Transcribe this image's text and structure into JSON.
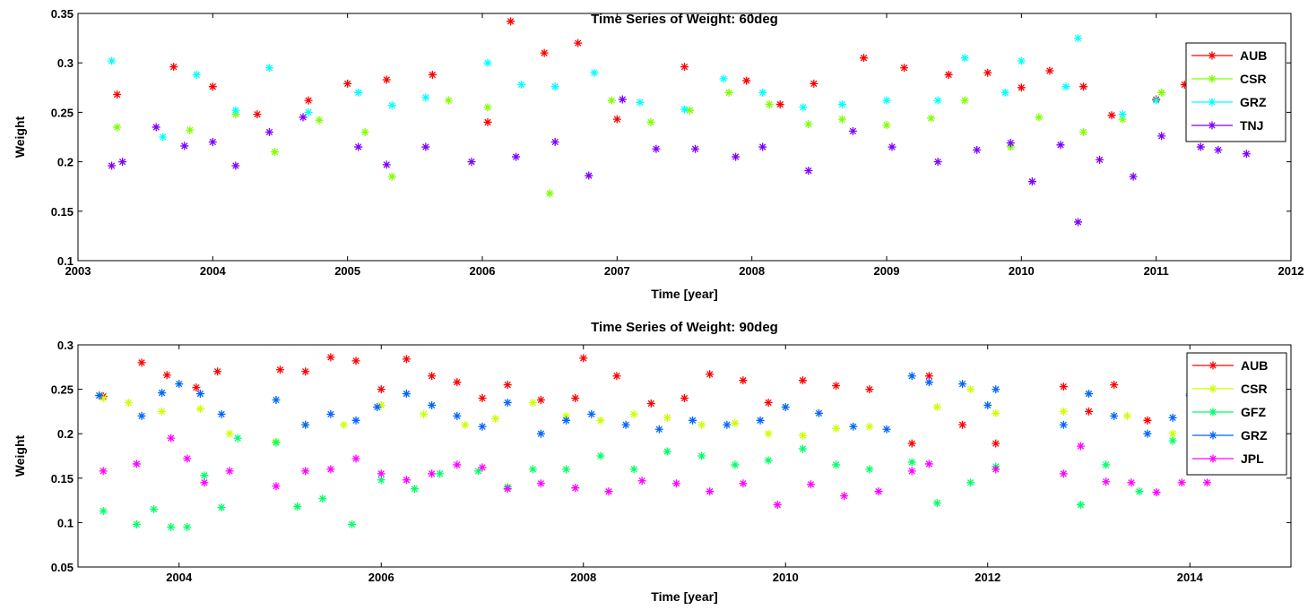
{
  "chart_data": [
    {
      "type": "scatter",
      "title": "Time Series of Weight: 60deg",
      "xlabel": "Time [year]",
      "ylabel": "Weight",
      "xlim": [
        2003,
        2012
      ],
      "ylim": [
        0.1,
        0.35
      ],
      "xticks": [
        2003,
        2004,
        2005,
        2006,
        2007,
        2008,
        2009,
        2010,
        2011,
        2012
      ],
      "xtick_labels": [
        "2003",
        "2004",
        "2005",
        "2006",
        "2007",
        "2008",
        "2009",
        "2010",
        "2011",
        "2012"
      ],
      "yticks": [
        0.1,
        0.15,
        0.2,
        0.25,
        0.3,
        0.35
      ],
      "ytick_labels": [
        "0.1",
        "0.15",
        "0.2",
        "0.25",
        "0.3",
        "0.35"
      ],
      "legend_position": "top-right",
      "series": [
        {
          "name": "AUB",
          "color": "#ff0000",
          "x": [
            2003.29,
            2003.71,
            2004.0,
            2004.33,
            2004.71,
            2005.0,
            2005.29,
            2005.63,
            2006.04,
            2006.21,
            2006.46,
            2006.71,
            2007.0,
            2007.5,
            2007.96,
            2008.21,
            2008.46,
            2008.83,
            2009.13,
            2009.46,
            2009.75,
            2010.0,
            2010.21,
            2010.46,
            2010.67,
            2011.0,
            2011.21
          ],
          "y": [
            0.268,
            0.296,
            0.276,
            0.248,
            0.262,
            0.279,
            0.283,
            0.288,
            0.24,
            0.342,
            0.31,
            0.32,
            0.243,
            0.296,
            0.282,
            0.258,
            0.279,
            0.305,
            0.295,
            0.288,
            0.29,
            0.275,
            0.292,
            0.276,
            0.247,
            0.263,
            0.278
          ]
        },
        {
          "name": "CSR",
          "color": "#80ff00",
          "x": [
            2003.29,
            2003.83,
            2004.17,
            2004.46,
            2004.79,
            2005.13,
            2005.33,
            2005.75,
            2006.04,
            2006.5,
            2006.96,
            2007.25,
            2007.54,
            2007.83,
            2008.13,
            2008.42,
            2008.67,
            2009.0,
            2009.33,
            2009.58,
            2009.92,
            2010.13,
            2010.46,
            2010.75,
            2011.04
          ],
          "y": [
            0.235,
            0.232,
            0.248,
            0.21,
            0.242,
            0.23,
            0.185,
            0.262,
            0.255,
            0.168,
            0.262,
            0.24,
            0.252,
            0.27,
            0.258,
            0.238,
            0.243,
            0.237,
            0.244,
            0.262,
            0.215,
            0.245,
            0.23,
            0.243,
            0.27
          ]
        },
        {
          "name": "GRZ",
          "color": "#00ffff",
          "x": [
            2003.25,
            2003.63,
            2003.88,
            2004.17,
            2004.42,
            2004.71,
            2005.08,
            2005.33,
            2005.58,
            2006.04,
            2006.29,
            2006.54,
            2006.83,
            2007.17,
            2007.5,
            2007.79,
            2008.08,
            2008.38,
            2008.67,
            2009.0,
            2009.38,
            2009.58,
            2009.88,
            2010.0,
            2010.33,
            2010.42,
            2010.75,
            2011.0
          ],
          "y": [
            0.302,
            0.225,
            0.288,
            0.252,
            0.295,
            0.25,
            0.27,
            0.257,
            0.265,
            0.3,
            0.278,
            0.276,
            0.29,
            0.26,
            0.253,
            0.284,
            0.27,
            0.255,
            0.258,
            0.262,
            0.262,
            0.305,
            0.27,
            0.302,
            0.276,
            0.325,
            0.248,
            0.262
          ]
        },
        {
          "name": "TNJ",
          "color": "#8000ff",
          "x": [
            2003.25,
            2003.33,
            2003.58,
            2003.79,
            2004.0,
            2004.17,
            2004.42,
            2004.67,
            2005.08,
            2005.29,
            2005.58,
            2005.92,
            2006.25,
            2006.54,
            2006.79,
            2007.04,
            2007.29,
            2007.58,
            2007.88,
            2008.08,
            2008.42,
            2008.75,
            2009.04,
            2009.38,
            2009.67,
            2009.92,
            2010.08,
            2010.29,
            2010.42,
            2010.58,
            2010.83,
            2011.04,
            2011.33,
            2011.46,
            2011.67
          ],
          "y": [
            0.196,
            0.2,
            0.235,
            0.216,
            0.22,
            0.196,
            0.23,
            0.245,
            0.215,
            0.197,
            0.215,
            0.2,
            0.205,
            0.22,
            0.186,
            0.263,
            0.213,
            0.213,
            0.205,
            0.215,
            0.191,
            0.231,
            0.215,
            0.2,
            0.212,
            0.219,
            0.18,
            0.217,
            0.139,
            0.202,
            0.185,
            0.226,
            0.215,
            0.212,
            0.208
          ]
        }
      ]
    },
    {
      "type": "scatter",
      "title": "Time Series of Weight: 90deg",
      "xlabel": "Time [year]",
      "ylabel": "Weight",
      "xlim": [
        2003,
        2015
      ],
      "ylim": [
        0.05,
        0.3
      ],
      "xticks": [
        2004,
        2006,
        2008,
        2010,
        2012,
        2014
      ],
      "xtick_labels": [
        "2004",
        "2006",
        "2008",
        "2010",
        "2012",
        "2014"
      ],
      "yticks": [
        0.05,
        0.1,
        0.15,
        0.2,
        0.25,
        0.3
      ],
      "ytick_labels": [
        "0.05",
        "0.1",
        "0.15",
        "0.2",
        "0.25",
        "0.3"
      ],
      "legend_position": "top-right",
      "series": [
        {
          "name": "AUB",
          "color": "#ff0000",
          "x": [
            2003.25,
            2003.63,
            2003.88,
            2004.17,
            2004.38,
            2005.0,
            2005.25,
            2005.5,
            2005.75,
            2006.0,
            2006.25,
            2006.5,
            2006.75,
            2007.0,
            2007.25,
            2007.58,
            2007.92,
            2008.0,
            2008.33,
            2008.67,
            2009.0,
            2009.25,
            2009.58,
            2009.83,
            2010.17,
            2010.5,
            2010.83,
            2011.25,
            2011.42,
            2011.75,
            2012.08,
            2012.75,
            2013.0,
            2013.25,
            2013.58
          ],
          "y": [
            0.242,
            0.28,
            0.266,
            0.252,
            0.27,
            0.272,
            0.27,
            0.286,
            0.282,
            0.25,
            0.284,
            0.265,
            0.258,
            0.24,
            0.255,
            0.238,
            0.24,
            0.285,
            0.265,
            0.234,
            0.24,
            0.267,
            0.26,
            0.235,
            0.26,
            0.254,
            0.25,
            0.189,
            0.265,
            0.21,
            0.189,
            0.253,
            0.225,
            0.255,
            0.215
          ]
        },
        {
          "name": "CSR",
          "color": "#ccff00",
          "x": [
            2003.25,
            2003.5,
            2003.83,
            2004.21,
            2004.5,
            2004.96,
            2005.25,
            2005.63,
            2006.0,
            2006.42,
            2006.83,
            2007.13,
            2007.5,
            2007.83,
            2008.17,
            2008.5,
            2008.83,
            2009.17,
            2009.5,
            2009.83,
            2010.17,
            2010.5,
            2010.83,
            2011.5,
            2011.83,
            2012.08,
            2012.75,
            2013.0,
            2013.38,
            2013.83
          ],
          "y": [
            0.24,
            0.235,
            0.225,
            0.228,
            0.2,
            0.191,
            0.21,
            0.21,
            0.232,
            0.222,
            0.21,
            0.217,
            0.235,
            0.22,
            0.215,
            0.222,
            0.218,
            0.21,
            0.212,
            0.2,
            0.198,
            0.206,
            0.208,
            0.23,
            0.25,
            0.223,
            0.225,
            0.245,
            0.22,
            0.2
          ]
        },
        {
          "name": "GFZ",
          "color": "#00ff66",
          "x": [
            2003.25,
            2003.58,
            2003.75,
            2003.92,
            2004.08,
            2004.25,
            2004.42,
            2004.58,
            2004.96,
            2005.17,
            2005.42,
            2005.71,
            2006.0,
            2006.33,
            2006.58,
            2006.96,
            2007.25,
            2007.5,
            2007.83,
            2008.17,
            2008.5,
            2008.83,
            2009.17,
            2009.5,
            2009.83,
            2010.17,
            2010.5,
            2010.83,
            2011.25,
            2011.5,
            2011.83,
            2012.08,
            2012.92,
            2013.17,
            2013.5,
            2013.83,
            2014.0
          ],
          "y": [
            0.113,
            0.098,
            0.115,
            0.095,
            0.095,
            0.153,
            0.117,
            0.195,
            0.19,
            0.118,
            0.127,
            0.098,
            0.148,
            0.138,
            0.155,
            0.158,
            0.14,
            0.16,
            0.16,
            0.175,
            0.16,
            0.18,
            0.175,
            0.165,
            0.17,
            0.183,
            0.165,
            0.16,
            0.168,
            0.122,
            0.145,
            0.163,
            0.12,
            0.165,
            0.135,
            0.192,
            0.245
          ]
        },
        {
          "name": "GRZ",
          "color": "#0066ff",
          "x": [
            2003.21,
            2003.63,
            2003.83,
            2004.0,
            2004.21,
            2004.42,
            2004.96,
            2005.25,
            2005.5,
            2005.75,
            2005.96,
            2006.25,
            2006.5,
            2006.75,
            2007.0,
            2007.25,
            2007.58,
            2007.83,
            2008.08,
            2008.42,
            2008.75,
            2009.08,
            2009.42,
            2009.75,
            2010.0,
            2010.33,
            2010.67,
            2011.0,
            2011.25,
            2011.42,
            2011.75,
            2012.0,
            2012.08,
            2012.75,
            2013.0,
            2013.25,
            2013.58,
            2013.83,
            2014.0
          ],
          "y": [
            0.243,
            0.22,
            0.246,
            0.256,
            0.245,
            0.222,
            0.238,
            0.21,
            0.222,
            0.215,
            0.23,
            0.245,
            0.232,
            0.22,
            0.208,
            0.235,
            0.2,
            0.215,
            0.222,
            0.21,
            0.205,
            0.215,
            0.21,
            0.215,
            0.23,
            0.223,
            0.208,
            0.205,
            0.265,
            0.258,
            0.256,
            0.232,
            0.25,
            0.21,
            0.245,
            0.22,
            0.2,
            0.218,
            0.243
          ]
        },
        {
          "name": "JPL",
          "color": "#ff00ff",
          "x": [
            2003.25,
            2003.58,
            2003.92,
            2004.08,
            2004.25,
            2004.5,
            2004.96,
            2005.25,
            2005.5,
            2005.75,
            2006.0,
            2006.25,
            2006.5,
            2006.75,
            2007.0,
            2007.25,
            2007.58,
            2007.92,
            2008.25,
            2008.58,
            2008.92,
            2009.25,
            2009.58,
            2009.92,
            2010.25,
            2010.58,
            2010.92,
            2011.25,
            2011.42,
            2012.08,
            2012.75,
            2012.92,
            2013.17,
            2013.42,
            2013.67,
            2013.92,
            2014.17
          ],
          "y": [
            0.158,
            0.166,
            0.195,
            0.172,
            0.145,
            0.158,
            0.141,
            0.158,
            0.16,
            0.172,
            0.155,
            0.148,
            0.155,
            0.165,
            0.162,
            0.138,
            0.144,
            0.139,
            0.135,
            0.147,
            0.144,
            0.135,
            0.144,
            0.12,
            0.143,
            0.13,
            0.135,
            0.158,
            0.166,
            0.16,
            0.155,
            0.186,
            0.146,
            0.145,
            0.134,
            0.145,
            0.145
          ]
        }
      ]
    }
  ]
}
